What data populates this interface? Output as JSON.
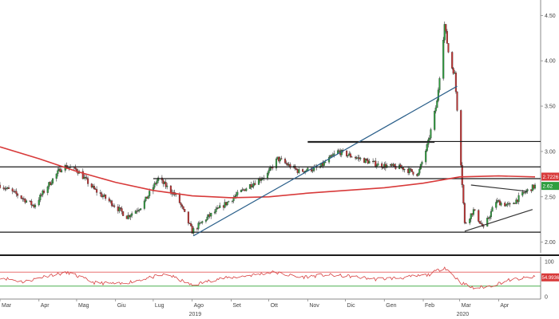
{
  "chart_data": [
    {
      "type": "candlestick",
      "panel": "price",
      "ylim": [
        1.9,
        4.6
      ],
      "y_ticks": [
        {
          "value": 2.0,
          "label": "2.00"
        },
        {
          "value": 2.5,
          "label": "2.50"
        },
        {
          "value": 3.0,
          "label": "3.00"
        },
        {
          "value": 3.5,
          "label": "3.50"
        },
        {
          "value": 4.0,
          "label": "4.00"
        },
        {
          "value": 4.5,
          "label": "4.50"
        }
      ],
      "x_range": [
        "2019-03-01",
        "2020-04-30"
      ],
      "x_ticks": [
        {
          "date": "2019-03-01",
          "label": "Mar"
        },
        {
          "date": "2019-04-01",
          "label": "Apr"
        },
        {
          "date": "2019-05-01",
          "label": "Mag"
        },
        {
          "date": "2019-06-01",
          "label": "Giu"
        },
        {
          "date": "2019-07-01",
          "label": "Lug"
        },
        {
          "date": "2019-08-01",
          "label": "Ago"
        },
        {
          "date": "2019-09-01",
          "label": "Set"
        },
        {
          "date": "2019-10-01",
          "label": "Ott"
        },
        {
          "date": "2019-11-01",
          "label": "Nov"
        },
        {
          "date": "2019-12-01",
          "label": "Dic"
        },
        {
          "date": "2020-01-01",
          "label": "Gen"
        },
        {
          "date": "2020-02-01",
          "label": "Feb"
        },
        {
          "date": "2020-03-01",
          "label": "Mar"
        },
        {
          "date": "2020-04-01",
          "label": "Apr"
        }
      ],
      "year_labels": [
        {
          "date": "2019-08-01",
          "label": "2019"
        },
        {
          "date": "2020-03-01",
          "label": "2020"
        }
      ],
      "price_path": [
        [
          "2019-03-01",
          2.63
        ],
        [
          "2019-03-15",
          2.52
        ],
        [
          "2019-03-28",
          2.4
        ],
        [
          "2019-04-08",
          2.62
        ],
        [
          "2019-04-20",
          2.84
        ],
        [
          "2019-05-01",
          2.8
        ],
        [
          "2019-05-15",
          2.58
        ],
        [
          "2019-05-30",
          2.42
        ],
        [
          "2019-06-10",
          2.28
        ],
        [
          "2019-06-22",
          2.4
        ],
        [
          "2019-07-05",
          2.7
        ],
        [
          "2019-07-20",
          2.5
        ],
        [
          "2019-08-01",
          2.12
        ],
        [
          "2019-08-12",
          2.26
        ],
        [
          "2019-08-30",
          2.45
        ],
        [
          "2019-09-15",
          2.62
        ],
        [
          "2019-09-30",
          2.75
        ],
        [
          "2019-10-08",
          2.92
        ],
        [
          "2019-10-25",
          2.78
        ],
        [
          "2019-11-10",
          2.82
        ],
        [
          "2019-11-25",
          3.0
        ],
        [
          "2019-12-10",
          2.93
        ],
        [
          "2019-12-28",
          2.85
        ],
        [
          "2020-01-15",
          2.82
        ],
        [
          "2020-01-28",
          2.75
        ],
        [
          "2020-02-05",
          3.1
        ],
        [
          "2020-02-12",
          3.55
        ],
        [
          "2020-02-18",
          4.4
        ],
        [
          "2020-02-22",
          4.0
        ],
        [
          "2020-02-26",
          3.85
        ],
        [
          "2020-03-01",
          3.1
        ],
        [
          "2020-03-05",
          2.2
        ],
        [
          "2020-03-12",
          2.35
        ],
        [
          "2020-03-20",
          2.15
        ],
        [
          "2020-03-30",
          2.45
        ],
        [
          "2020-04-10",
          2.4
        ],
        [
          "2020-04-22",
          2.55
        ],
        [
          "2020-04-30",
          2.62
        ]
      ],
      "moving_average": {
        "color": "#d83a3a",
        "points": [
          [
            "2019-03-01",
            3.05
          ],
          [
            "2019-04-01",
            2.92
          ],
          [
            "2019-05-01",
            2.78
          ],
          [
            "2019-06-01",
            2.66
          ],
          [
            "2019-07-01",
            2.57
          ],
          [
            "2019-08-01",
            2.51
          ],
          [
            "2019-09-01",
            2.49
          ],
          [
            "2019-10-01",
            2.5
          ],
          [
            "2019-11-01",
            2.54
          ],
          [
            "2019-12-01",
            2.57
          ],
          [
            "2020-01-01",
            2.6
          ],
          [
            "2020-02-01",
            2.65
          ],
          [
            "2020-03-01",
            2.72
          ],
          [
            "2020-04-01",
            2.73
          ],
          [
            "2020-04-30",
            2.72
          ]
        ]
      },
      "horizontal_levels": [
        {
          "value": 2.83,
          "from": "2019-03-01",
          "to": "2020-04-30"
        },
        {
          "value": 2.7,
          "from": "2019-07-01",
          "to": "2020-04-30"
        },
        {
          "value": 3.11,
          "from": "2019-11-01",
          "to": "2020-04-30"
        },
        {
          "value": 2.11,
          "from": "2019-03-01",
          "to": "2020-04-30"
        }
      ],
      "trendlines": [
        {
          "color": "#2a5f8a",
          "from": [
            "2019-08-02",
            2.07
          ],
          "to": [
            "2020-02-28",
            3.72
          ]
        },
        {
          "color": "#333333",
          "from": [
            "2019-11-01",
            3.1
          ],
          "to": [
            "2020-02-10",
            3.1
          ]
        },
        {
          "color": "#333333",
          "from": [
            "2020-03-10",
            2.63
          ],
          "to": [
            "2020-04-24",
            2.56
          ]
        },
        {
          "color": "#333333",
          "from": [
            "2020-03-05",
            2.12
          ],
          "to": [
            "2020-04-28",
            2.36
          ]
        }
      ],
      "badges": [
        {
          "label": "2.7226",
          "value": 2.7226,
          "color": "#d83a3a"
        },
        {
          "label": "2.62",
          "value": 2.62,
          "color": "#2e9e3e"
        }
      ],
      "up_color": "#2e9e3e",
      "down_color": "#c33232"
    },
    {
      "type": "line",
      "panel": "oscillator",
      "ylim": [
        0,
        100
      ],
      "y_ticks": [
        {
          "value": 0,
          "label": "0"
        },
        {
          "value": 100,
          "label": "100"
        }
      ],
      "upper_level": {
        "value": 70,
        "color": "#e87070"
      },
      "lower_level": {
        "value": 30,
        "color": "#4caf50"
      },
      "line_color": "#d84040",
      "path": [
        [
          "2019-03-01",
          55
        ],
        [
          "2019-03-20",
          42
        ],
        [
          "2019-04-10",
          62
        ],
        [
          "2019-04-25",
          68
        ],
        [
          "2019-05-15",
          40
        ],
        [
          "2019-06-05",
          36
        ],
        [
          "2019-06-25",
          52
        ],
        [
          "2019-07-12",
          64
        ],
        [
          "2019-08-01",
          32
        ],
        [
          "2019-08-20",
          50
        ],
        [
          "2019-09-10",
          58
        ],
        [
          "2019-10-05",
          70
        ],
        [
          "2019-10-25",
          55
        ],
        [
          "2019-11-15",
          62
        ],
        [
          "2019-12-05",
          58
        ],
        [
          "2019-12-25",
          50
        ],
        [
          "2020-01-15",
          54
        ],
        [
          "2020-02-05",
          62
        ],
        [
          "2020-02-18",
          84
        ],
        [
          "2020-03-02",
          40
        ],
        [
          "2020-03-12",
          24
        ],
        [
          "2020-03-25",
          30
        ],
        [
          "2020-04-10",
          48
        ],
        [
          "2020-04-30",
          56
        ]
      ],
      "badges": [
        {
          "label": "54.9936",
          "value": 54.9936,
          "color": "#d83a3a"
        }
      ]
    }
  ]
}
